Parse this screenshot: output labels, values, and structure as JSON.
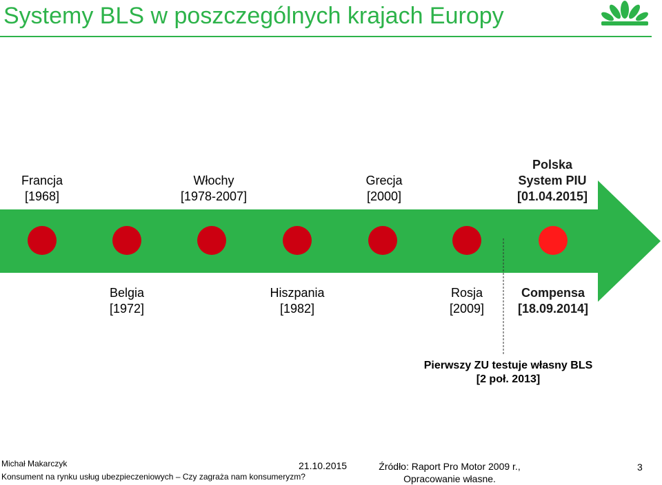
{
  "title": "Systemy BLS w poszczególnych krajach Europy",
  "colors": {
    "green": "#2db34a",
    "node": "#cc0011",
    "node_highlight": "#ff1a1a"
  },
  "timeline": {
    "above": [
      {
        "name": "Francja",
        "date": "[1968]",
        "bold": false
      },
      {
        "name": "Włochy",
        "date": "[1978-2007]",
        "bold": false
      },
      {
        "name": "Grecja",
        "date": "[2000]",
        "bold": false
      },
      {
        "name_line1": "Polska",
        "name_line2": "System PIU",
        "date": "[01.04.2015]",
        "bold": true
      }
    ],
    "below": [
      {
        "name": "Belgia",
        "date": "[1972]"
      },
      {
        "name": "Hiszpania",
        "date": "[1982]"
      },
      {
        "name": "Rosja",
        "date": "[2009]"
      },
      {
        "name": "Compensa",
        "date": "[18.09.2014]",
        "bold": true
      }
    ],
    "note_line1": "Pierwszy ZU testuje własny BLS",
    "note_line2": "[2 poł. 2013]"
  },
  "footer": {
    "author": "Michał Makarczyk",
    "subtitle": "Konsument na rynku usług ubezpieczeniowych – Czy zagraża nam konsumeryzm?",
    "date": "21.10.2015",
    "source_line1": "Źródło: Raport Pro Motor 2009 r.,",
    "source_line2": "Opracowanie własne.",
    "page": "3"
  }
}
